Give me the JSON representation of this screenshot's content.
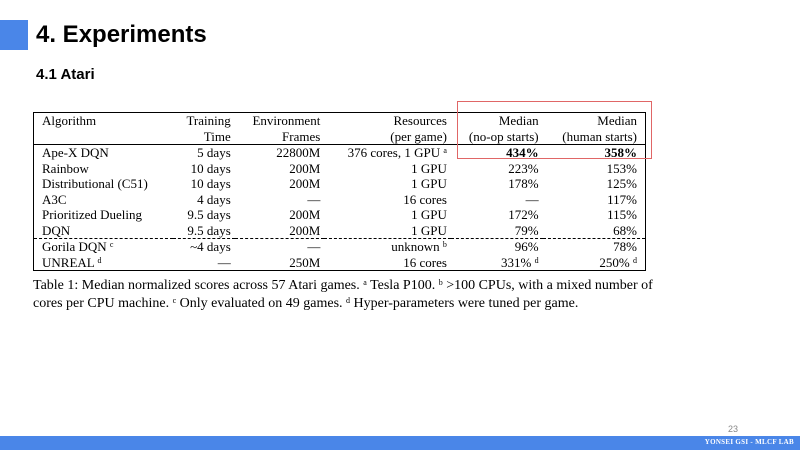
{
  "slide": {
    "title": "4. Experiments",
    "section": "4.1 Atari",
    "page_number": "23",
    "footer": "YONSEI GSI - MLCF LAB"
  },
  "table": {
    "headers": {
      "algorithm": "Algorithm",
      "training_1": "Training",
      "training_2": "Time",
      "env_1": "Environment",
      "env_2": "Frames",
      "res_1": "Resources",
      "res_2": "(per game)",
      "noop_1": "Median",
      "noop_2": "(no-op starts)",
      "human_1": "Median",
      "human_2": "(human starts)"
    },
    "rows": [
      {
        "algorithm": "Ape-X DQN",
        "alg_sup": "",
        "time": "5 days",
        "frames": "22800M",
        "resources": "376 cores, 1 GPU",
        "res_sup": "a",
        "noop": "434%",
        "noop_sup": "",
        "human": "358%"
      },
      {
        "algorithm": "Rainbow",
        "alg_sup": "",
        "time": "10 days",
        "frames": "200M",
        "resources": "1 GPU",
        "res_sup": "",
        "noop": "223%",
        "noop_sup": "",
        "human": "153%"
      },
      {
        "algorithm": "Distributional (C51)",
        "alg_sup": "",
        "time": "10 days",
        "frames": "200M",
        "resources": "1 GPU",
        "res_sup": "",
        "noop": "178%",
        "noop_sup": "",
        "human": "125%"
      },
      {
        "algorithm": "A3C",
        "alg_sup": "",
        "time": "4 days",
        "frames": "—",
        "resources": "16 cores",
        "res_sup": "",
        "noop": "—",
        "noop_sup": "",
        "human": "117%"
      },
      {
        "algorithm": "Prioritized Dueling",
        "alg_sup": "",
        "time": "9.5 days",
        "frames": "200M",
        "resources": "1 GPU",
        "res_sup": "",
        "noop": "172%",
        "noop_sup": "",
        "human": "115%"
      },
      {
        "algorithm": "DQN",
        "alg_sup": "",
        "time": "9.5 days",
        "frames": "200M",
        "resources": "1 GPU",
        "res_sup": "",
        "noop": "79%",
        "noop_sup": "",
        "human": "68%"
      },
      {
        "algorithm": "Gorila DQN",
        "alg_sup": "c",
        "time": "~4 days",
        "frames": "—",
        "resources": "unknown",
        "res_sup": "b",
        "noop": "96%",
        "noop_sup": "",
        "human": "78%"
      },
      {
        "algorithm": "UNREAL",
        "alg_sup": "d",
        "time": "—",
        "frames": "250M",
        "resources": "16 cores",
        "res_sup": "",
        "noop": "331%",
        "noop_sup": "d",
        "human": "250%",
        "human_sup": "d"
      }
    ]
  },
  "caption": {
    "t1": "Table 1: Median normalized scores across 57 Atari games. ",
    "s1": "a",
    "t2": " Tesla P100. ",
    "s2": "b",
    "t3": " >100 CPUs, with a mixed number of cores per CPU machine. ",
    "s3": "c",
    "t4": " Only evaluated on 49 games. ",
    "s4": "d",
    "t5": " Hyper-parameters were tuned per game."
  },
  "colors": {
    "accent": "#4a86e8",
    "highlight_box": "#e06666"
  }
}
